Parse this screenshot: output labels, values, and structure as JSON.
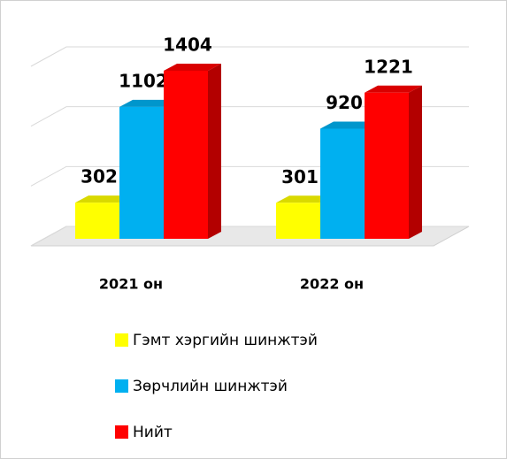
{
  "chart_data": {
    "type": "bar3d",
    "categories": [
      "2021 он",
      "2022 он"
    ],
    "series": [
      {
        "name": "Гэмт хэргийн шинжтэй",
        "color": "#ffff00",
        "values": [
          302,
          301
        ]
      },
      {
        "name": "Зөрчлийн шинжтэй",
        "color": "#00b0f0",
        "values": [
          1102,
          920
        ]
      },
      {
        "name": "Нийт",
        "color": "#ff0000",
        "values": [
          1404,
          1221
        ]
      }
    ],
    "ylim": [
      0,
      1500
    ],
    "yticks": [
      0,
      500,
      1000,
      1500
    ],
    "grid": true
  }
}
